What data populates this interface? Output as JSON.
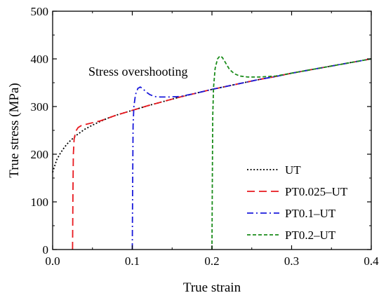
{
  "chart_data": {
    "type": "line",
    "title": "",
    "xlabel": "True strain",
    "ylabel": "True stress (MPa)",
    "xlim": [
      0.0,
      0.4
    ],
    "ylim": [
      0,
      500
    ],
    "xticks": [
      0.0,
      0.1,
      0.2,
      0.3,
      0.4
    ],
    "xtick_labels": [
      "0.0",
      "0.1",
      "0.2",
      "0.3",
      "0.4"
    ],
    "yticks": [
      0,
      100,
      200,
      300,
      400,
      500
    ],
    "ytick_labels": [
      "0",
      "100",
      "200",
      "300",
      "400",
      "500"
    ],
    "grid": false,
    "legend_position": "bottom-right",
    "annotations": [
      {
        "text": "Stress overshooting",
        "x": 0.075,
        "y": 370
      }
    ],
    "series": [
      {
        "name": "UT",
        "color": "#000000",
        "dash": "dotted",
        "points": [
          [
            0.0,
            162
          ],
          [
            0.005,
            188
          ],
          [
            0.01,
            203
          ],
          [
            0.015,
            215
          ],
          [
            0.02,
            225
          ],
          [
            0.03,
            240
          ],
          [
            0.04,
            252
          ],
          [
            0.05,
            261
          ],
          [
            0.06,
            269
          ],
          [
            0.07,
            276
          ],
          [
            0.08,
            282
          ],
          [
            0.09,
            287
          ],
          [
            0.1,
            292
          ],
          [
            0.12,
            302
          ],
          [
            0.14,
            311
          ],
          [
            0.16,
            320
          ],
          [
            0.18,
            328
          ],
          [
            0.2,
            336
          ],
          [
            0.22,
            343
          ],
          [
            0.24,
            350
          ],
          [
            0.26,
            357
          ],
          [
            0.28,
            363
          ],
          [
            0.3,
            370
          ],
          [
            0.32,
            376
          ],
          [
            0.34,
            382
          ],
          [
            0.36,
            388
          ],
          [
            0.38,
            394
          ],
          [
            0.4,
            400
          ]
        ]
      },
      {
        "name": "PT0.025–UT",
        "color": "#e8191f",
        "dash": "dashed",
        "points": [
          [
            0.025,
            0
          ],
          [
            0.0255,
            120
          ],
          [
            0.026,
            200
          ],
          [
            0.027,
            232
          ],
          [
            0.029,
            248
          ],
          [
            0.032,
            256
          ],
          [
            0.036,
            260
          ],
          [
            0.04,
            262
          ],
          [
            0.05,
            266
          ],
          [
            0.06,
            270
          ],
          [
            0.07,
            276
          ],
          [
            0.08,
            282
          ],
          [
            0.09,
            287
          ],
          [
            0.1,
            292
          ],
          [
            0.12,
            302
          ],
          [
            0.14,
            311
          ],
          [
            0.16,
            320
          ],
          [
            0.18,
            328
          ],
          [
            0.2,
            336
          ],
          [
            0.22,
            343
          ],
          [
            0.24,
            350
          ],
          [
            0.26,
            357
          ],
          [
            0.28,
            363
          ],
          [
            0.3,
            370
          ],
          [
            0.32,
            376
          ],
          [
            0.34,
            382
          ],
          [
            0.36,
            388
          ],
          [
            0.38,
            394
          ],
          [
            0.4,
            400
          ]
        ]
      },
      {
        "name": "PT0.1–UT",
        "color": "#1a1adb",
        "dash": "dashdot",
        "points": [
          [
            0.1,
            0
          ],
          [
            0.1005,
            150
          ],
          [
            0.101,
            260
          ],
          [
            0.102,
            300
          ],
          [
            0.104,
            325
          ],
          [
            0.107,
            338
          ],
          [
            0.11,
            341
          ],
          [
            0.113,
            338
          ],
          [
            0.117,
            331
          ],
          [
            0.122,
            325
          ],
          [
            0.128,
            321
          ],
          [
            0.135,
            320
          ],
          [
            0.145,
            320
          ],
          [
            0.16,
            321
          ],
          [
            0.18,
            328
          ],
          [
            0.2,
            336
          ],
          [
            0.22,
            343
          ],
          [
            0.24,
            350
          ],
          [
            0.26,
            357
          ],
          [
            0.28,
            363
          ],
          [
            0.3,
            370
          ],
          [
            0.32,
            376
          ],
          [
            0.34,
            382
          ],
          [
            0.36,
            388
          ],
          [
            0.38,
            394
          ],
          [
            0.4,
            400
          ]
        ]
      },
      {
        "name": "PT0.2–UT",
        "color": "#1a8c1a",
        "dash": "shortdash",
        "points": [
          [
            0.2,
            0
          ],
          [
            0.2005,
            150
          ],
          [
            0.201,
            280
          ],
          [
            0.202,
            340
          ],
          [
            0.204,
            380
          ],
          [
            0.207,
            400
          ],
          [
            0.21,
            406
          ],
          [
            0.213,
            403
          ],
          [
            0.217,
            392
          ],
          [
            0.222,
            378
          ],
          [
            0.228,
            369
          ],
          [
            0.235,
            364
          ],
          [
            0.245,
            362
          ],
          [
            0.26,
            362
          ],
          [
            0.28,
            364
          ],
          [
            0.3,
            370
          ],
          [
            0.32,
            376
          ],
          [
            0.34,
            382
          ],
          [
            0.36,
            388
          ],
          [
            0.38,
            394
          ],
          [
            0.4,
            400
          ]
        ]
      }
    ]
  }
}
